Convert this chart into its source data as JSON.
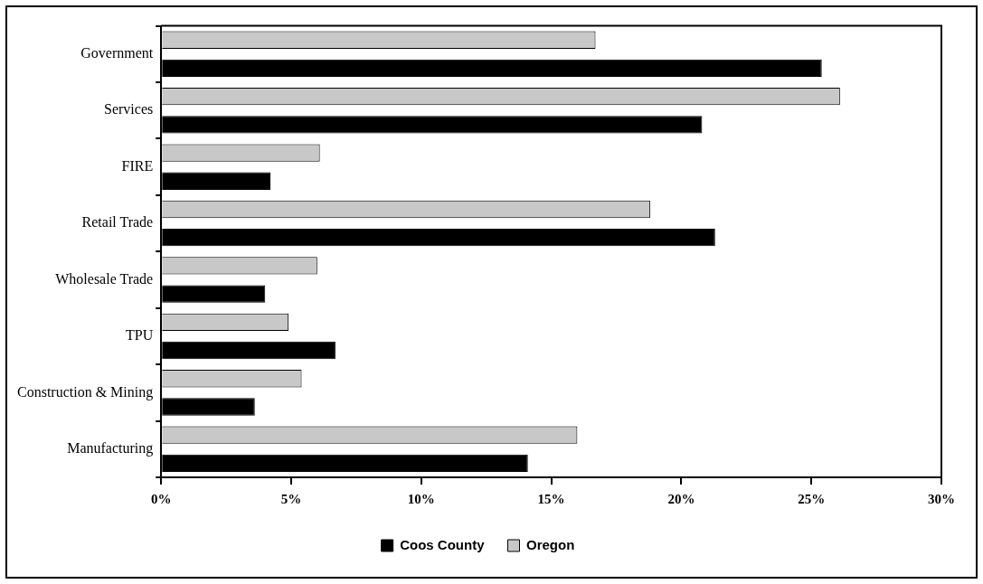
{
  "chart_data": {
    "type": "bar",
    "orientation": "horizontal",
    "categories": [
      "Government",
      "Services",
      "FIRE",
      "Retail Trade",
      "Wholesale Trade",
      "TPU",
      "Construction & Mining",
      "Manufacturing"
    ],
    "series": [
      {
        "name": "Coos County",
        "color": "#000000",
        "values": [
          25.4,
          20.8,
          4.2,
          21.3,
          4.0,
          6.7,
          3.6,
          14.1
        ]
      },
      {
        "name": "Oregon",
        "color": "#c8c8c8",
        "values": [
          16.7,
          26.1,
          6.1,
          18.8,
          6.0,
          4.9,
          5.4,
          16.0
        ]
      }
    ],
    "xlim": [
      0,
      30
    ],
    "xticks": [
      {
        "value": 0,
        "label": "0%"
      },
      {
        "value": 5,
        "label": "5%"
      },
      {
        "value": 10,
        "label": "10%"
      },
      {
        "value": 15,
        "label": "15%"
      },
      {
        "value": 20,
        "label": "20%"
      },
      {
        "value": 25,
        "label": "25%"
      },
      {
        "value": 30,
        "label": "30%"
      }
    ],
    "grid": false,
    "legend": "bottom"
  }
}
